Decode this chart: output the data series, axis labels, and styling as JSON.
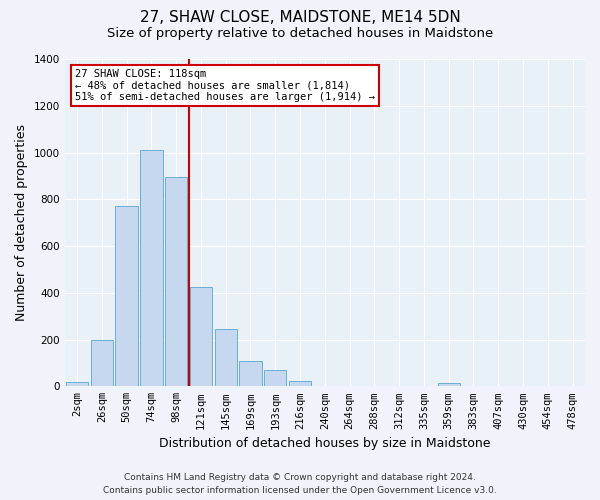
{
  "title": "27, SHAW CLOSE, MAIDSTONE, ME14 5DN",
  "subtitle": "Size of property relative to detached houses in Maidstone",
  "xlabel": "Distribution of detached houses by size in Maidstone",
  "ylabel": "Number of detached properties",
  "footnote1": "Contains HM Land Registry data © Crown copyright and database right 2024.",
  "footnote2": "Contains public sector information licensed under the Open Government Licence v3.0.",
  "bin_labels": [
    "2sqm",
    "26sqm",
    "50sqm",
    "74sqm",
    "98sqm",
    "121sqm",
    "145sqm",
    "169sqm",
    "193sqm",
    "216sqm",
    "240sqm",
    "264sqm",
    "288sqm",
    "312sqm",
    "335sqm",
    "359sqm",
    "383sqm",
    "407sqm",
    "430sqm",
    "454sqm",
    "478sqm"
  ],
  "bar_heights": [
    20,
    200,
    770,
    1010,
    895,
    425,
    245,
    110,
    68,
    22,
    0,
    0,
    0,
    0,
    0,
    15,
    0,
    0,
    0,
    0,
    0
  ],
  "bar_color": "#c5d8f0",
  "bar_edge_color": "#6baed6",
  "vline_color": "#cc0000",
  "annotation_title": "27 SHAW CLOSE: 118sqm",
  "annotation_line1": "← 48% of detached houses are smaller (1,814)",
  "annotation_line2": "51% of semi-detached houses are larger (1,914) →",
  "annotation_box_color": "#ffffff",
  "annotation_box_edge_color": "#cc0000",
  "ylim": [
    0,
    1400
  ],
  "yticks": [
    0,
    200,
    400,
    600,
    800,
    1000,
    1200,
    1400
  ],
  "figure_bg": "#f0f4fa",
  "plot_bg": "#e8f0f8",
  "grid_color": "#ffffff",
  "title_fontsize": 11,
  "subtitle_fontsize": 9.5,
  "axis_label_fontsize": 9,
  "tick_fontsize": 7.5,
  "footnote_fontsize": 6.5
}
